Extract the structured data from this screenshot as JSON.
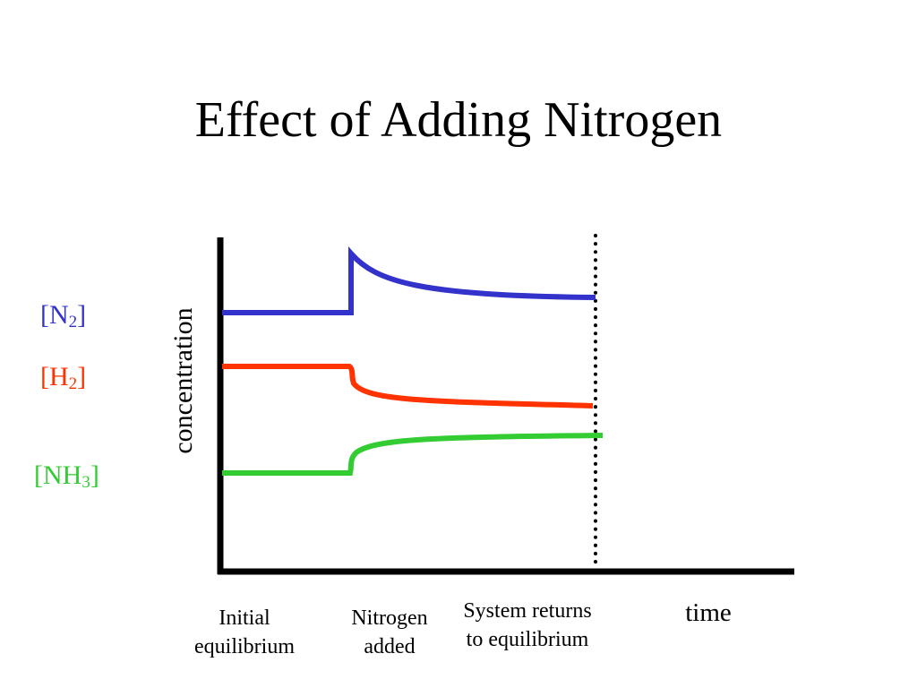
{
  "title": "Effect of Adding Nitrogen",
  "chart_data": {
    "type": "line",
    "title": "Effect of Adding Nitrogen",
    "ylabel": "concentration",
    "xlabel": "time",
    "grid": false,
    "series": [
      {
        "name": "[N2]",
        "label_main": "[N",
        "label_sub": "2",
        "label_end": "]",
        "color": "#3333cc",
        "behavior": "constant, jumps up when nitrogen added, then decays to a new higher level"
      },
      {
        "name": "[H2]",
        "label_main": "[H",
        "label_sub": "2",
        "label_end": "]",
        "color": "#ff3300",
        "behavior": "constant, then decreases to a new lower level"
      },
      {
        "name": "[NH3]",
        "label_main": "[NH",
        "label_sub": "3",
        "label_end": "]",
        "color": "#33cc33",
        "behavior": "constant, then increases to a new higher level"
      }
    ],
    "annotations": {
      "initial": [
        "Initial",
        "equilibrium"
      ],
      "added": [
        "Nitrogen",
        "added"
      ],
      "returns": [
        "System returns",
        "to equilibrium"
      ]
    },
    "marker_line": "dotted vertical line at return to equilibrium"
  }
}
